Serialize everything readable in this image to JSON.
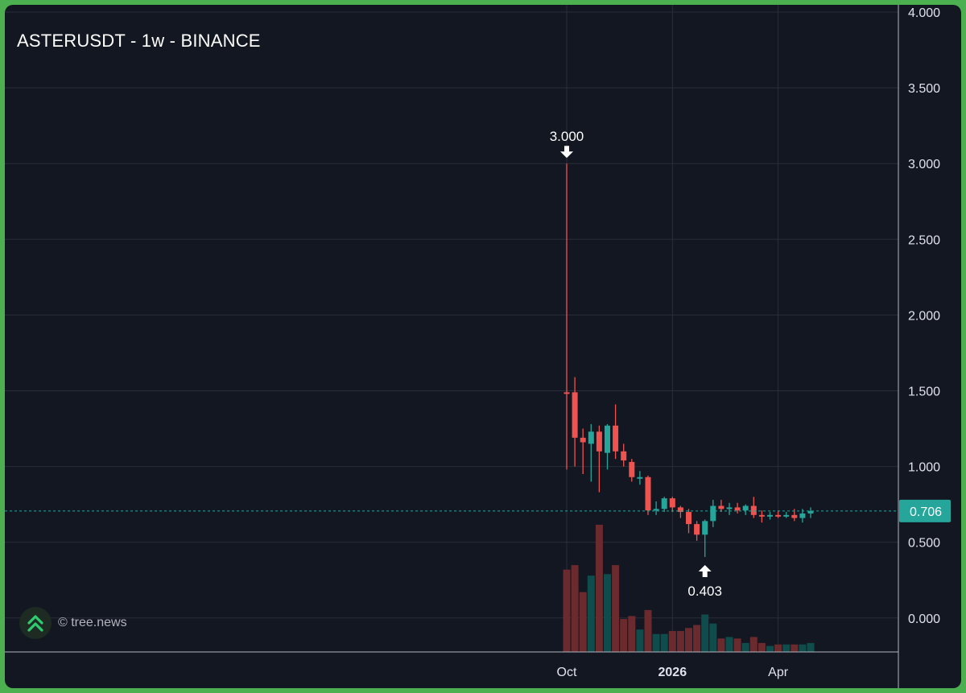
{
  "chart_title": "ASTERUSDT - 1w - BINANCE",
  "watermark": {
    "text": "© tree.news",
    "icon": "double-chevron-up-icon"
  },
  "colors": {
    "background": "#131722",
    "grid": "#2a2e39",
    "up": "#26a69a",
    "down": "#ef5350",
    "up_volume": "#0f4c4c",
    "down_volume": "#6b2a2e",
    "text": "#e0e3eb",
    "price_line": "#26a69a"
  },
  "chart_data": {
    "type": "candlestick",
    "symbol": "ASTERUSDT",
    "timeframe": "1w",
    "exchange": "BINANCE",
    "ylim": [
      -0.2,
      4.0
    ],
    "y_ticks": [
      "4.000",
      "3.500",
      "3.000",
      "2.500",
      "2.000",
      "1.500",
      "1.000",
      "0.500",
      "0.000"
    ],
    "y_tick_values": [
      4.0,
      3.5,
      3.0,
      2.5,
      2.0,
      1.5,
      1.0,
      0.5,
      0.0
    ],
    "x_ticks": [
      {
        "label": "Oct",
        "index": 0,
        "bold": false
      },
      {
        "label": "2026",
        "index": 13,
        "bold": true
      },
      {
        "label": "Apr",
        "index": 26,
        "bold": false
      }
    ],
    "last_price": 0.706,
    "last_price_label": "0.706",
    "annotations": [
      {
        "label": "3.000",
        "value": 3.0,
        "index": 0,
        "type": "high"
      },
      {
        "label": "0.403",
        "value": 0.403,
        "index": 17,
        "type": "low"
      }
    ],
    "candles": [
      {
        "o": 1.49,
        "h": 3.0,
        "l": 0.98,
        "c": 1.48,
        "v": 0.55
      },
      {
        "o": 1.49,
        "h": 1.59,
        "l": 1.0,
        "c": 1.19,
        "v": 0.58
      },
      {
        "o": 1.19,
        "h": 1.25,
        "l": 0.95,
        "c": 1.16,
        "v": 0.4
      },
      {
        "o": 1.15,
        "h": 1.28,
        "l": 0.9,
        "c": 1.23,
        "v": 0.51
      },
      {
        "o": 1.23,
        "h": 1.27,
        "l": 0.83,
        "c": 1.1,
        "v": 0.85
      },
      {
        "o": 1.09,
        "h": 1.28,
        "l": 0.98,
        "c": 1.27,
        "v": 0.52
      },
      {
        "o": 1.27,
        "h": 1.41,
        "l": 1.05,
        "c": 1.1,
        "v": 0.58
      },
      {
        "o": 1.1,
        "h": 1.15,
        "l": 1.0,
        "c": 1.04,
        "v": 0.22
      },
      {
        "o": 1.03,
        "h": 1.05,
        "l": 0.9,
        "c": 0.93,
        "v": 0.24
      },
      {
        "o": 0.92,
        "h": 0.97,
        "l": 0.88,
        "c": 0.93,
        "v": 0.15
      },
      {
        "o": 0.93,
        "h": 0.94,
        "l": 0.68,
        "c": 0.71,
        "v": 0.28
      },
      {
        "o": 0.71,
        "h": 0.77,
        "l": 0.68,
        "c": 0.72,
        "v": 0.12
      },
      {
        "o": 0.72,
        "h": 0.8,
        "l": 0.7,
        "c": 0.79,
        "v": 0.12
      },
      {
        "o": 0.79,
        "h": 0.8,
        "l": 0.7,
        "c": 0.73,
        "v": 0.14
      },
      {
        "o": 0.73,
        "h": 0.74,
        "l": 0.66,
        "c": 0.7,
        "v": 0.14
      },
      {
        "o": 0.7,
        "h": 0.72,
        "l": 0.56,
        "c": 0.62,
        "v": 0.16
      },
      {
        "o": 0.62,
        "h": 0.64,
        "l": 0.51,
        "c": 0.55,
        "v": 0.18
      },
      {
        "o": 0.55,
        "h": 0.65,
        "l": 0.403,
        "c": 0.64,
        "v": 0.25
      },
      {
        "o": 0.64,
        "h": 0.78,
        "l": 0.6,
        "c": 0.74,
        "v": 0.19
      },
      {
        "o": 0.74,
        "h": 0.78,
        "l": 0.7,
        "c": 0.72,
        "v": 0.09
      },
      {
        "o": 0.72,
        "h": 0.76,
        "l": 0.68,
        "c": 0.73,
        "v": 0.1
      },
      {
        "o": 0.73,
        "h": 0.76,
        "l": 0.69,
        "c": 0.71,
        "v": 0.09
      },
      {
        "o": 0.71,
        "h": 0.75,
        "l": 0.68,
        "c": 0.74,
        "v": 0.06
      },
      {
        "o": 0.74,
        "h": 0.8,
        "l": 0.66,
        "c": 0.68,
        "v": 0.1
      },
      {
        "o": 0.68,
        "h": 0.71,
        "l": 0.63,
        "c": 0.67,
        "v": 0.06
      },
      {
        "o": 0.67,
        "h": 0.7,
        "l": 0.65,
        "c": 0.68,
        "v": 0.04
      },
      {
        "o": 0.68,
        "h": 0.71,
        "l": 0.66,
        "c": 0.67,
        "v": 0.05
      },
      {
        "o": 0.67,
        "h": 0.7,
        "l": 0.66,
        "c": 0.68,
        "v": 0.05
      },
      {
        "o": 0.68,
        "h": 0.72,
        "l": 0.64,
        "c": 0.66,
        "v": 0.05
      },
      {
        "o": 0.66,
        "h": 0.72,
        "l": 0.63,
        "c": 0.69,
        "v": 0.05
      },
      {
        "o": 0.69,
        "h": 0.73,
        "l": 0.66,
        "c": 0.706,
        "v": 0.06
      }
    ]
  }
}
